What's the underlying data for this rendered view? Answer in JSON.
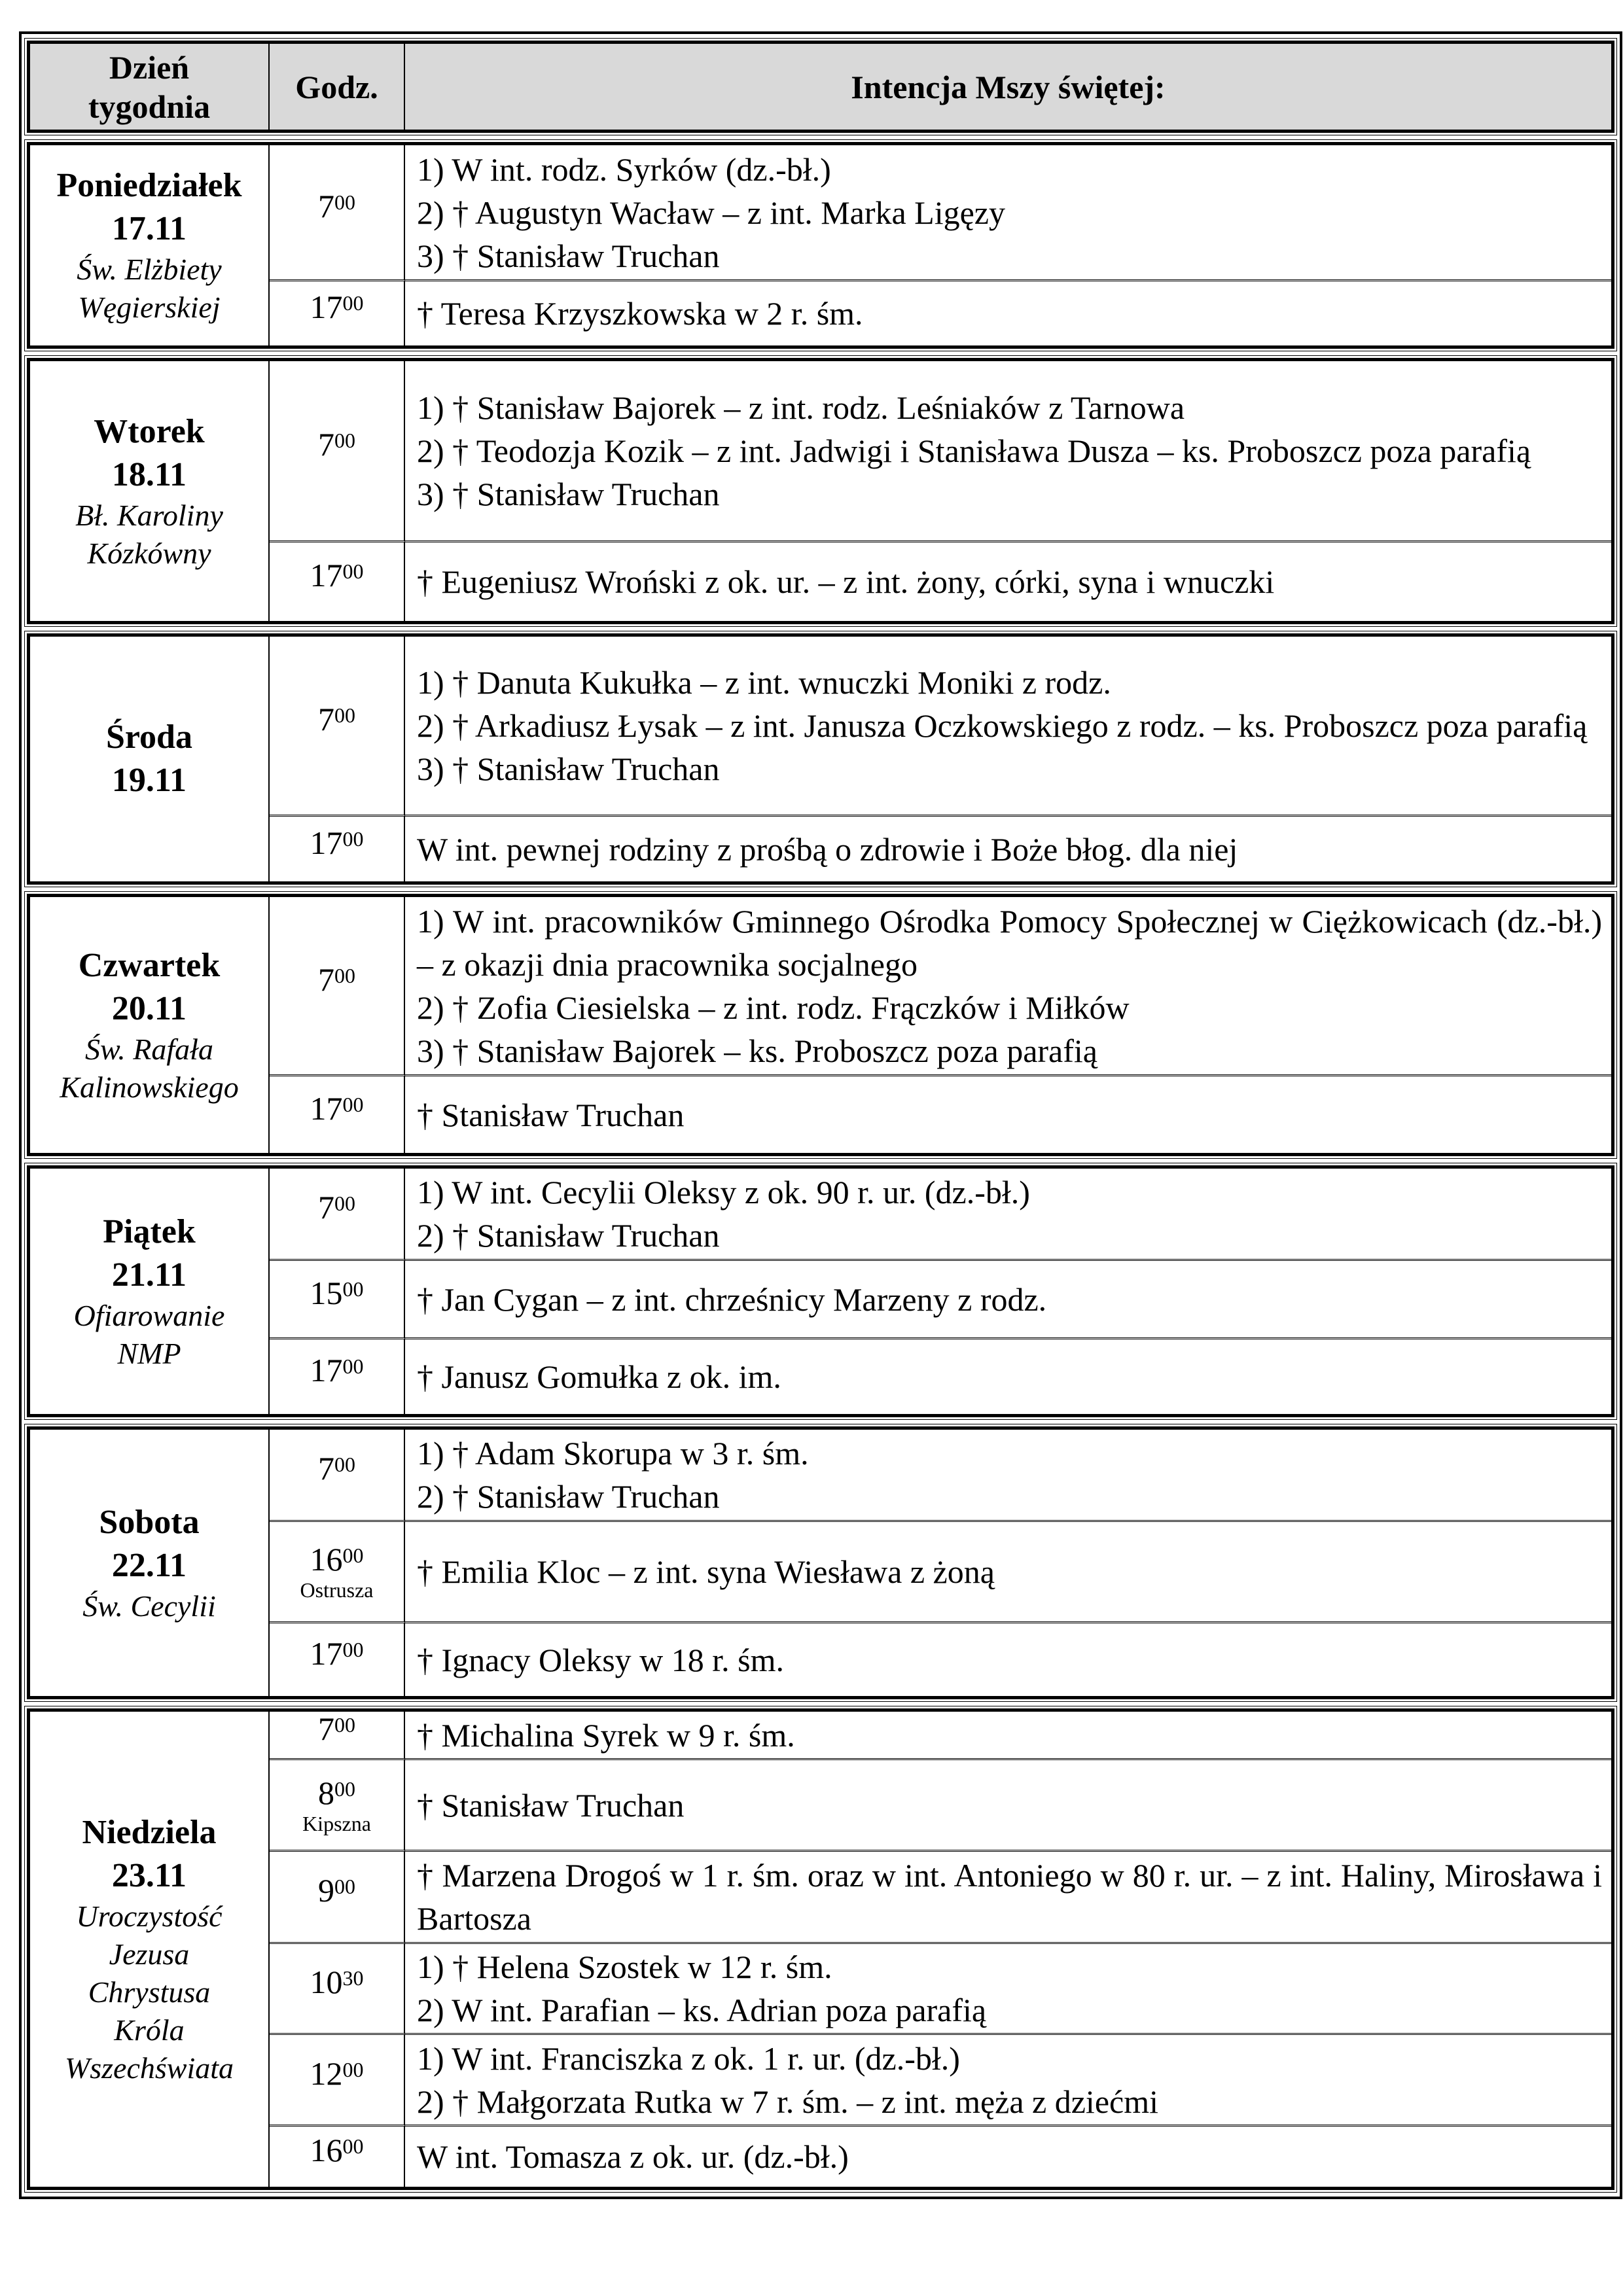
{
  "header": {
    "day": "Dzień tygodnia",
    "hour": "Godz.",
    "intention": "Intencja Mszy świętej:"
  },
  "days": [
    {
      "name": "Poniedziałek",
      "date": "17.11",
      "saint": "Św. Elżbiety\nWęgierskiej",
      "masses": [
        {
          "h": "7",
          "m": "00",
          "lines": [
            "1) W int. rodz. Syrków (dz.-bł.)",
            "2) † Augustyn Wacław – z int. Marka Ligęzy",
            "3) † Stanisław Truchan"
          ]
        },
        {
          "h": "17",
          "m": "00",
          "lines": [
            "† Teresa Krzyszkowska w 2 r. śm."
          ]
        }
      ]
    },
    {
      "name": "Wtorek",
      "date": "18.11",
      "saint": "Bł. Karoliny\nKózkówny",
      "masses": [
        {
          "h": "7",
          "m": "00",
          "lines": [
            "1) † Stanisław Bajorek – z int. rodz. Leśniaków z Tarnowa",
            "2) † Teodozja Kozik – z int. Jadwigi i Stanisława Dusza – ks. Proboszcz poza parafią",
            "3) † Stanisław Truchan"
          ]
        },
        {
          "h": "17",
          "m": "00",
          "lines": [
            "† Eugeniusz Wroński z ok. ur. – z int. żony, córki, syna i wnuczki"
          ]
        }
      ]
    },
    {
      "name": "Środa",
      "date": "19.11",
      "saint": "",
      "masses": [
        {
          "h": "7",
          "m": "00",
          "lines": [
            "1) † Danuta Kukułka – z int. wnuczki Moniki z rodz.",
            "2) † Arkadiusz Łysak – z int. Janusza Oczkowskiego z rodz. – ks. Proboszcz poza parafią",
            "3) † Stanisław Truchan"
          ]
        },
        {
          "h": "17",
          "m": "00",
          "lines": [
            "W int. pewnej rodziny z prośbą o zdrowie i Boże błog. dla niej"
          ]
        }
      ]
    },
    {
      "name": "Czwartek",
      "date": "20.11",
      "saint": "Św. Rafała\nKalinowskiego",
      "masses": [
        {
          "h": "7",
          "m": "00",
          "lines": [
            "1) W int. pracowników Gminnego Ośrodka Pomocy Społecznej w Ciężkowicach (dz.-bł.) – z okazji dnia pracownika socjalnego",
            "2) † Zofia Ciesielska – z int. rodz. Frączków i Miłków",
            "3) † Stanisław Bajorek – ks. Proboszcz poza parafią"
          ]
        },
        {
          "h": "17",
          "m": "00",
          "lines": [
            "† Stanisław Truchan"
          ]
        }
      ]
    },
    {
      "name": "Piątek",
      "date": "21.11",
      "saint": "Ofiarowanie\nNMP",
      "masses": [
        {
          "h": "7",
          "m": "00",
          "lines": [
            "1) W int. Cecylii Oleksy z ok. 90 r. ur. (dz.-bł.)",
            "2) † Stanisław Truchan"
          ]
        },
        {
          "h": "15",
          "m": "00",
          "lines": [
            "† Jan Cygan – z int. chrześnicy Marzeny z rodz."
          ]
        },
        {
          "h": "17",
          "m": "00",
          "lines": [
            "† Janusz Gomułka z ok. im."
          ]
        }
      ]
    },
    {
      "name": "Sobota",
      "date": "22.11",
      "saint": "Św. Cecylii",
      "masses": [
        {
          "h": "7",
          "m": "00",
          "lines": [
            "1) † Adam Skorupa w 3 r. śm.",
            "2) † Stanisław Truchan"
          ]
        },
        {
          "h": "16",
          "m": "00",
          "place": "Ostrusza",
          "lines": [
            "† Emilia Kloc – z int. syna Wiesława z żoną"
          ]
        },
        {
          "h": "17",
          "m": "00",
          "lines": [
            "† Ignacy Oleksy w 18 r. śm."
          ]
        }
      ]
    },
    {
      "name": "Niedziela",
      "date": "23.11",
      "saint": "Uroczystość\nJezusa\nChrystusa\nKróla\nWszechświata",
      "masses": [
        {
          "h": "7",
          "m": "00",
          "lines": [
            "† Michalina Syrek w 9 r. śm."
          ]
        },
        {
          "h": "8",
          "m": "00",
          "place": "Kipszna",
          "lines": [
            "† Stanisław Truchan"
          ]
        },
        {
          "h": "9",
          "m": "00",
          "lines": [
            "† Marzena Drogoś w 1 r. śm. oraz w int. Antoniego w 80 r. ur. – z int. Haliny, Mirosława i Bartosza"
          ]
        },
        {
          "h": "10",
          "m": "30",
          "lines": [
            "1) † Helena Szostek w 12 r. śm.",
            "2) W int. Parafian – ks. Adrian poza parafią"
          ]
        },
        {
          "h": "12",
          "m": "00",
          "lines": [
            "1) W int. Franciszka z ok. 1 r. ur. (dz.-bł.)",
            "2) † Małgorzata Rutka w 7 r. śm. – z int. męża z dziećmi"
          ]
        },
        {
          "h": "16",
          "m": "00",
          "lines": [
            "W int. Tomasza z ok. ur. (dz.-bł.)"
          ]
        }
      ]
    }
  ]
}
